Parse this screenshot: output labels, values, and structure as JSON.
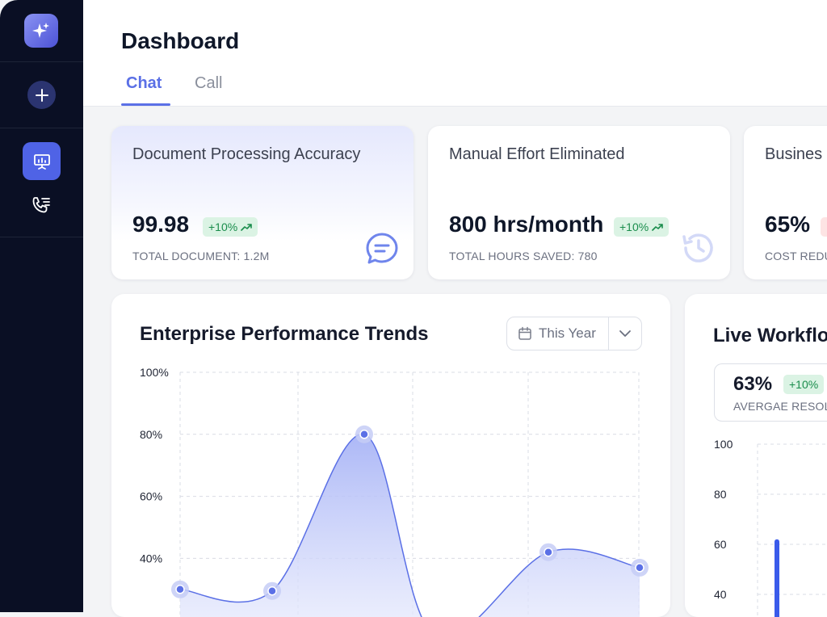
{
  "sidebar": {
    "logo_icon": "sparkle-icon",
    "new_button_icon": "plus-icon",
    "nav": [
      {
        "icon": "presentation-chart-icon",
        "active": true
      },
      {
        "icon": "phone-list-icon",
        "active": false
      }
    ]
  },
  "header": {
    "title": "Dashboard",
    "tabs": [
      {
        "label": "Chat",
        "active": true
      },
      {
        "label": "Call",
        "active": false
      }
    ]
  },
  "kpi_cards": [
    {
      "title": "Document Processing Accuracy",
      "value": "99.98",
      "badge": "+10%",
      "subtitle": "TOTAL DOCUMENT: 1.2M",
      "icon": "chat-bubble-icon"
    },
    {
      "title": "Manual Effort Eliminated",
      "value": "800 hrs/month",
      "badge": "+10%",
      "subtitle": "TOTAL HOURS SAVED: 780",
      "icon": "history-icon"
    },
    {
      "title": "Busines",
      "value": "65%",
      "subtitle": "COST REDU"
    }
  ],
  "trends": {
    "title": "Enterprise Performance Trends",
    "period": "This Year"
  },
  "workflow": {
    "title": "Live Workflo",
    "stat_value": "63%",
    "stat_badge": "+10%",
    "stat_label": "AVERGAE RESOL"
  },
  "colors": {
    "accent": "#5b70e6",
    "sidebar_bg": "#0a0f24",
    "badge_bg": "#dbf3e4",
    "badge_text": "#1a8d4c",
    "bar": "#3a5bea"
  },
  "chart_data": [
    {
      "type": "area",
      "x": [
        1,
        2,
        3,
        4,
        5,
        6
      ],
      "values": [
        30,
        29.5,
        80,
        15,
        42,
        37
      ],
      "ylim": [
        30,
        100
      ],
      "yticks": [
        "100%",
        "80%",
        "60%",
        "40%"
      ],
      "grid": true
    },
    {
      "type": "bar",
      "values": [
        62
      ],
      "ylim": [
        40,
        100
      ],
      "yticks": [
        "100",
        "80",
        "60",
        "40"
      ],
      "grid": true
    }
  ]
}
